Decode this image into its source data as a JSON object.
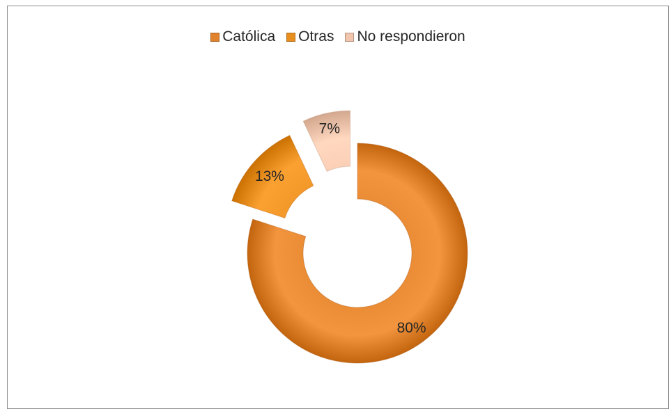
{
  "chart_data": {
    "type": "pie",
    "style": "exploded-doughnut",
    "title": "",
    "legend_position": "top",
    "series": [
      {
        "slices": [
          {
            "label": "Católica",
            "value": 80,
            "display": "80%",
            "color": "#e0832c"
          },
          {
            "label": "Otras",
            "value": 13,
            "display": "13%",
            "color": "#e98f1f"
          },
          {
            "label": "No respondieron",
            "value": 7,
            "display": "7%",
            "color": "#f1c6ad"
          }
        ]
      }
    ]
  }
}
